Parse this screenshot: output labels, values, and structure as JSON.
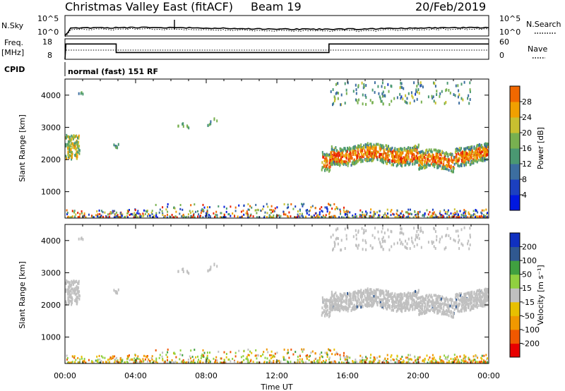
{
  "header": {
    "station": "Christmas Valley East (fitACF)",
    "beam": "Beam 19",
    "date": "20/Feb/2019"
  },
  "noise_panel": {
    "left_label": "N.Sky",
    "right_label": "N.Search",
    "ticks": [
      "10^5",
      "10^0"
    ]
  },
  "freq_panel": {
    "left_label_line1": "Freq.",
    "left_label_line2": "[MHz]",
    "right_label": "Nave",
    "left_ticks": [
      "18",
      "8"
    ],
    "right_ticks": [
      "60",
      "0"
    ]
  },
  "cpid": {
    "label": "CPID",
    "program": "normal (fast) 151 RF"
  },
  "colors": {
    "power_scale": [
      "#0018e0",
      "#1c40c0",
      "#3c6ea0",
      "#4a9872",
      "#78b050",
      "#c8c030",
      "#f0a000",
      "#f06800",
      "#e82000"
    ],
    "velocity_scale": [
      "#e80000",
      "#f05800",
      "#f09800",
      "#e8c000",
      "#c0c0c0",
      "#90d040",
      "#40a040",
      "#305890",
      "#1030c0"
    ]
  },
  "chart_data": [
    {
      "type": "heatmap",
      "name": "power",
      "ylabel": "Slant Range [km]",
      "ylim": [
        180,
        4500
      ],
      "yticks": [
        "1000",
        "2000",
        "3000",
        "4000"
      ],
      "colorbar_label": "Power [dB]",
      "colorbar_ticks": [
        "4",
        "8",
        "12",
        "16",
        "20",
        "24",
        "28"
      ],
      "colorbar_range": [
        0,
        30
      ],
      "x_time_range_h": [
        0,
        24
      ]
    },
    {
      "type": "heatmap",
      "name": "velocity",
      "ylabel": "Slant Range [km]",
      "ylim": [
        180,
        4500
      ],
      "yticks": [
        "1000",
        "2000",
        "3000",
        "4000"
      ],
      "colorbar_label": "Velocity [m s⁻¹]",
      "colorbar_ticks": [
        "-200",
        "-100",
        "-50",
        "-15",
        "15",
        "50",
        "100",
        "200"
      ],
      "x_time_range_h": [
        0,
        24
      ]
    }
  ],
  "x_axis": {
    "label": "Time UT",
    "ticks": [
      "00:00",
      "04:00",
      "08:00",
      "12:00",
      "16:00",
      "20:00",
      "00:00"
    ]
  }
}
